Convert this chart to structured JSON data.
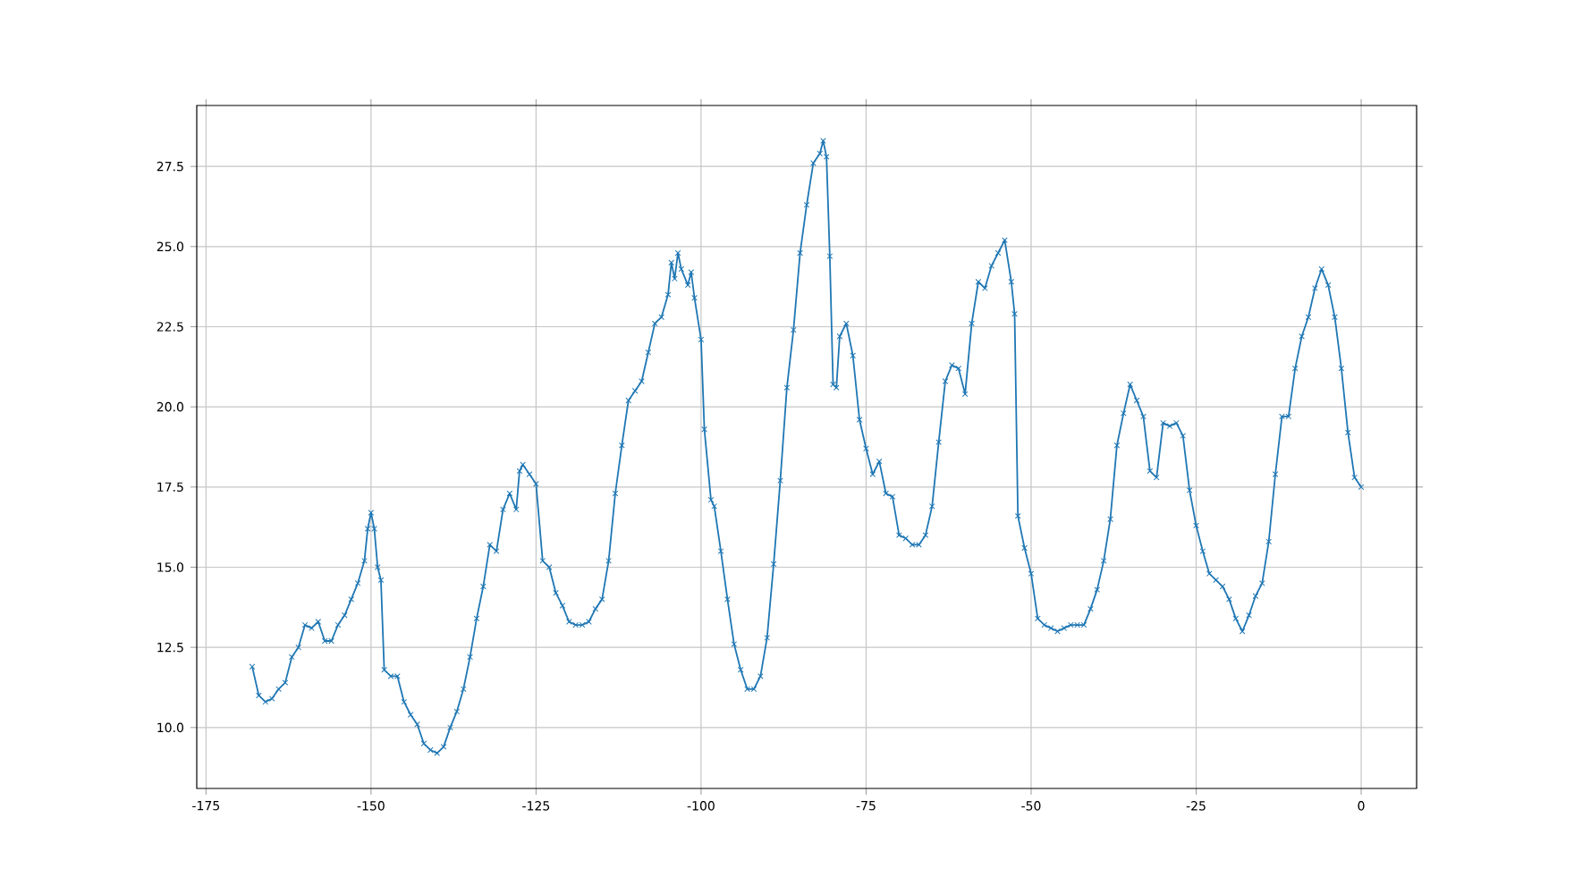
{
  "chart_data": {
    "type": "line",
    "color": "#1f77b4",
    "marker": "cross",
    "line_style": "solid",
    "grid": true,
    "x": [
      -168,
      -167,
      -166,
      -165,
      -164,
      -163,
      -162,
      -161,
      -160,
      -159,
      -158,
      -157,
      -156,
      -155,
      -154,
      -153,
      -152,
      -151,
      -150.5,
      -150,
      -149.5,
      -149,
      -148.5,
      -148,
      -147,
      -146,
      -145,
      -144,
      -143,
      -142,
      -141,
      -140,
      -139,
      -138,
      -137,
      -136,
      -135,
      -134,
      -133,
      -132,
      -131,
      -130,
      -129,
      -128,
      -127.5,
      -127,
      -126,
      -125,
      -124,
      -123,
      -122,
      -121,
      -120,
      -119,
      -118,
      -117,
      -116,
      -115,
      -114,
      -113,
      -112,
      -111,
      -110,
      -109,
      -108,
      -107,
      -106,
      -105,
      -104.5,
      -104,
      -103.5,
      -103,
      -102,
      -101.5,
      -101,
      -100,
      -99.5,
      -98.5,
      -98,
      -97,
      -96,
      -95,
      -94,
      -93,
      -92,
      -91,
      -90,
      -89,
      -88,
      -87,
      -86,
      -85,
      -84,
      -83,
      -82,
      -81.5,
      -81,
      -80.5,
      -80,
      -79.5,
      -79,
      -78,
      -77,
      -76,
      -75,
      -74,
      -73,
      -72,
      -71,
      -70,
      -69,
      -68,
      -67,
      -66,
      -65,
      -64,
      -63,
      -62,
      -61,
      -60,
      -59,
      -58,
      -57,
      -56,
      -55,
      -54,
      -53,
      -52.5,
      -52,
      -51,
      -50,
      -49,
      -48,
      -47,
      -46,
      -45,
      -44,
      -43,
      -42,
      -41,
      -40,
      -39,
      -38,
      -37,
      -36,
      -35,
      -34,
      -33,
      -32,
      -31,
      -30,
      -29,
      -28,
      -27,
      -26,
      -25,
      -24,
      -23,
      -22,
      -21,
      -20,
      -19,
      -18,
      -17,
      -16,
      -15,
      -14,
      -13,
      -12,
      -11,
      -10,
      -9,
      -8,
      -7,
      -6,
      -5,
      -4,
      -3,
      -2,
      -1,
      0
    ],
    "values": [
      11.9,
      11.0,
      10.8,
      10.9,
      11.2,
      11.4,
      12.2,
      12.5,
      13.2,
      13.1,
      13.3,
      12.7,
      12.7,
      13.2,
      13.5,
      14.0,
      14.5,
      15.2,
      16.2,
      16.7,
      16.2,
      15.0,
      14.6,
      11.8,
      11.6,
      11.6,
      10.8,
      10.4,
      10.1,
      9.5,
      9.3,
      9.2,
      9.4,
      10.0,
      10.5,
      11.2,
      12.2,
      13.4,
      14.4,
      15.7,
      15.5,
      16.8,
      17.3,
      16.8,
      18.0,
      18.2,
      17.9,
      17.6,
      15.2,
      15.0,
      14.2,
      13.8,
      13.3,
      13.2,
      13.2,
      13.3,
      13.7,
      14.0,
      15.2,
      17.3,
      18.8,
      20.2,
      20.5,
      20.8,
      21.7,
      22.6,
      22.8,
      23.5,
      24.5,
      24.0,
      24.8,
      24.3,
      23.8,
      24.2,
      23.4,
      22.1,
      19.3,
      17.1,
      16.9,
      15.5,
      14.0,
      12.6,
      11.8,
      11.2,
      11.2,
      11.6,
      12.8,
      15.1,
      17.7,
      20.6,
      22.4,
      24.8,
      26.3,
      27.6,
      27.9,
      28.3,
      27.8,
      24.7,
      20.7,
      20.6,
      22.2,
      22.6,
      21.6,
      19.6,
      18.7,
      17.9,
      18.3,
      17.3,
      17.2,
      16.0,
      15.9,
      15.7,
      15.7,
      16.0,
      16.9,
      18.9,
      20.8,
      21.3,
      21.2,
      20.4,
      22.6,
      23.9,
      23.7,
      24.4,
      24.8,
      25.2,
      23.9,
      22.9,
      16.6,
      15.6,
      14.8,
      13.4,
      13.2,
      13.1,
      13.0,
      13.1,
      13.2,
      13.2,
      13.2,
      13.7,
      14.3,
      15.2,
      16.5,
      18.8,
      19.8,
      20.7,
      20.2,
      19.7,
      18.0,
      17.8,
      19.5,
      19.4,
      19.5,
      19.1,
      17.4,
      16.3,
      15.5,
      14.8,
      14.6,
      14.4,
      14.0,
      13.4,
      13.0,
      13.5,
      14.1,
      14.5,
      15.8,
      17.9,
      19.7,
      19.7,
      21.2,
      22.2,
      22.8,
      23.7,
      24.3,
      23.8,
      22.8,
      21.2,
      19.2,
      17.8,
      17.5
    ],
    "xlim": [
      -176.4,
      8.4
    ],
    "ylim": [
      8.1,
      29.4
    ],
    "xticks": [
      -175,
      -150,
      -125,
      -100,
      -75,
      -50,
      -25,
      0
    ],
    "yticks": [
      {
        "value": 10,
        "label": "10.0"
      },
      {
        "value": 12.5,
        "label": "12.5"
      },
      {
        "value": 15,
        "label": "15.0"
      },
      {
        "value": 17.5,
        "label": "17.5"
      },
      {
        "value": 20,
        "label": "20.0"
      },
      {
        "value": 22.5,
        "label": "22.5"
      },
      {
        "value": 25,
        "label": "25.0"
      },
      {
        "value": 27.5,
        "label": "27.5"
      }
    ]
  }
}
